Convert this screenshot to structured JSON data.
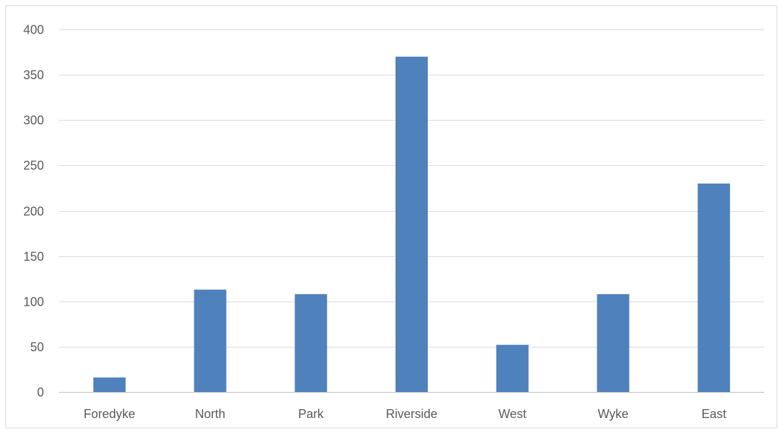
{
  "chart_data": {
    "type": "bar",
    "title": "",
    "xlabel": "",
    "ylabel": "",
    "categories": [
      "Foredyke",
      "North",
      "Park",
      "Riverside",
      "West",
      "Wyke",
      "East"
    ],
    "values": [
      16,
      113,
      108,
      370,
      52,
      108,
      230
    ],
    "ylim": [
      0,
      400
    ],
    "yticks": [
      0,
      50,
      100,
      150,
      200,
      250,
      300,
      350,
      400
    ],
    "grid": true,
    "legend": "none",
    "bar_color": "#4F81BD",
    "grid_color": "#D9D9D9"
  }
}
